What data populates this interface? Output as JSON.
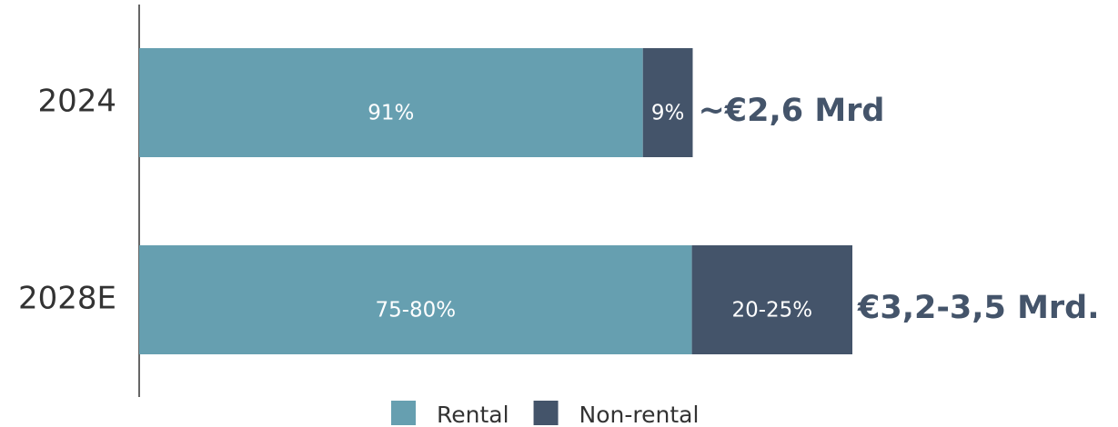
{
  "chart_data": {
    "type": "stacked-barh",
    "categories": [
      "2024",
      "2028E"
    ],
    "series": [
      {
        "name": "Rental",
        "color": "#669fb0",
        "values": [
          91,
          77.5
        ],
        "value_labels": [
          "91%",
          "75-80%"
        ]
      },
      {
        "name": "Non-rental",
        "color": "#44546a",
        "values": [
          9,
          22.5
        ],
        "value_labels": [
          "9%",
          "20-25%"
        ]
      }
    ],
    "totals": {
      "values": [
        2.6,
        3.35
      ],
      "value_labels": [
        "~€2,6 Mrd",
        "€3,2-3,5 Mrd."
      ],
      "color": "#44546a"
    }
  }
}
